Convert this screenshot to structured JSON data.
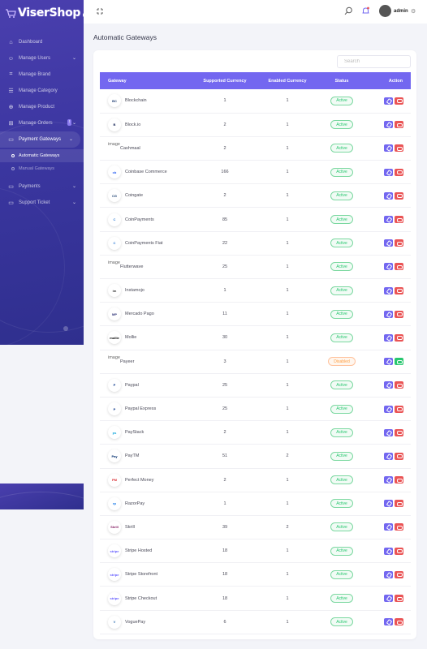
{
  "app": {
    "logo_text": "ViserShop"
  },
  "sidebar": {
    "items": [
      {
        "label": "Dashboard",
        "icon": "home-icon",
        "glyph": "⌂",
        "chevron": false
      },
      {
        "label": "Manage Users",
        "icon": "users-icon",
        "glyph": "☺",
        "chevron": true
      },
      {
        "label": "Manage Brand",
        "icon": "tag-icon",
        "glyph": "⌗",
        "chevron": false
      },
      {
        "label": "Manage Category",
        "icon": "list-icon",
        "glyph": "☰",
        "chevron": false
      },
      {
        "label": "Manage Product",
        "icon": "box-icon",
        "glyph": "⊕",
        "chevron": false
      },
      {
        "label": "Manage Orders",
        "icon": "cart-icon",
        "glyph": "⊞",
        "chevron": true,
        "badge": "!"
      },
      {
        "label": "Payment Gateways",
        "icon": "credit-card-icon",
        "glyph": "▭",
        "chevron": true,
        "active": true
      },
      {
        "label": "Payments",
        "icon": "wallet-icon",
        "glyph": "▭",
        "chevron": true
      },
      {
        "label": "Support Ticket",
        "icon": "ticket-icon",
        "glyph": "▭",
        "chevron": true
      }
    ],
    "submenu": [
      {
        "label": "Automatic Gateways",
        "active": true
      },
      {
        "label": "Manual Gateways",
        "active": false
      }
    ]
  },
  "topbar": {
    "admin_name": "admin"
  },
  "page": {
    "title": "Automatic Gateways"
  },
  "search": {
    "placeholder": "Search"
  },
  "table": {
    "headers": [
      "Gateway",
      "Supported Currency",
      "Enabled Currency",
      "Status",
      "Action"
    ],
    "rows": [
      {
        "name": "Blockchain",
        "supported": "1",
        "enabled": "1",
        "status": "Active",
        "logo": "blockchain-logo",
        "logo_text": "BC",
        "logo_color": "#1c3b70"
      },
      {
        "name": "Block.io",
        "supported": "2",
        "enabled": "1",
        "status": "Active",
        "logo": "blockio-logo",
        "logo_text": "B",
        "logo_color": "#0d1b4f"
      },
      {
        "name": "Cashmaal",
        "supported": "2",
        "enabled": "1",
        "status": "Active",
        "logo": "broken-image",
        "logo_text": "image",
        "broken": true
      },
      {
        "name": "Coinbase Commerce",
        "supported": "166",
        "enabled": "1",
        "status": "Active",
        "logo": "coinbase-logo",
        "logo_text": "cb",
        "logo_color": "#1652f0"
      },
      {
        "name": "Coingate",
        "supported": "2",
        "enabled": "1",
        "status": "Active",
        "logo": "coingate-logo",
        "logo_text": "CG",
        "logo_color": "#1a3e70"
      },
      {
        "name": "CoinPayments",
        "supported": "85",
        "enabled": "1",
        "status": "Active",
        "logo": "coinpayments-logo",
        "logo_text": "C",
        "logo_color": "#2a7ad5"
      },
      {
        "name": "CoinPayments Fiat",
        "supported": "22",
        "enabled": "1",
        "status": "Active",
        "logo": "coinpayments-fiat-logo",
        "logo_text": "C",
        "logo_color": "#2a7ad5"
      },
      {
        "name": "Flutterwave",
        "supported": "25",
        "enabled": "1",
        "status": "Active",
        "logo": "broken-image",
        "logo_text": "image",
        "broken": true
      },
      {
        "name": "Instamojo",
        "supported": "1",
        "enabled": "1",
        "status": "Active",
        "logo": "instamojo-logo",
        "logo_text": "im",
        "logo_color": "#333333"
      },
      {
        "name": "Mercado Pago",
        "supported": "11",
        "enabled": "1",
        "status": "Active",
        "logo": "mercadopago-logo",
        "logo_text": "MP",
        "logo_color": "#2d3277"
      },
      {
        "name": "Mollie",
        "supported": "30",
        "enabled": "1",
        "status": "Active",
        "logo": "mollie-logo",
        "logo_text": "mollie",
        "logo_color": "#000000"
      },
      {
        "name": "Payeer",
        "supported": "3",
        "enabled": "1",
        "status": "Disabled",
        "logo": "broken-image",
        "logo_text": "image",
        "broken": true
      },
      {
        "name": "Paypal",
        "supported": "25",
        "enabled": "1",
        "status": "Active",
        "logo": "paypal-logo",
        "logo_text": "P",
        "logo_color": "#003087"
      },
      {
        "name": "Paypal Express",
        "supported": "25",
        "enabled": "1",
        "status": "Active",
        "logo": "paypal-express-logo",
        "logo_text": "P",
        "logo_color": "#003087"
      },
      {
        "name": "PayStack",
        "supported": "2",
        "enabled": "1",
        "status": "Active",
        "logo": "paystack-logo",
        "logo_text": "ps",
        "logo_color": "#0ba4db"
      },
      {
        "name": "PayTM",
        "supported": "51",
        "enabled": "2",
        "status": "Active",
        "logo": "paytm-logo",
        "logo_text": "Pay",
        "logo_color": "#002e6e"
      },
      {
        "name": "Perfect Money",
        "supported": "2",
        "enabled": "1",
        "status": "Active",
        "logo": "perfectmoney-logo",
        "logo_text": "PM",
        "logo_color": "#d9262c"
      },
      {
        "name": "RazorPay",
        "supported": "1",
        "enabled": "1",
        "status": "Active",
        "logo": "razorpay-logo",
        "logo_text": "rp",
        "logo_color": "#0b72e7"
      },
      {
        "name": "Skrill",
        "supported": "39",
        "enabled": "2",
        "status": "Active",
        "logo": "skrill-logo",
        "logo_text": "Skrill",
        "logo_color": "#862165"
      },
      {
        "name": "Stripe Hosted",
        "supported": "18",
        "enabled": "1",
        "status": "Active",
        "logo": "stripe-logo",
        "logo_text": "stripe",
        "logo_color": "#635bff"
      },
      {
        "name": "Stripe Storefront",
        "supported": "18",
        "enabled": "1",
        "status": "Active",
        "logo": "stripe-logo",
        "logo_text": "stripe",
        "logo_color": "#635bff"
      },
      {
        "name": "Stripe Checkout",
        "supported": "18",
        "enabled": "1",
        "status": "Active",
        "logo": "stripe-logo",
        "logo_text": "stripe",
        "logo_color": "#635bff"
      },
      {
        "name": "VoguePay",
        "supported": "6",
        "enabled": "1",
        "status": "Active",
        "logo": "voguepay-logo",
        "logo_text": "V",
        "logo_color": "#2b6cb0"
      }
    ]
  },
  "colors": {
    "accent": "#7367f0",
    "danger": "#ea5455",
    "success": "#28c76f",
    "warning": "#ff9f43",
    "sidebar": "#3b36a0"
  }
}
